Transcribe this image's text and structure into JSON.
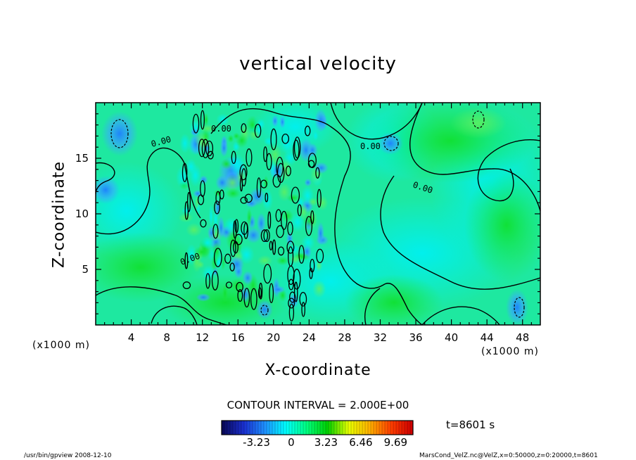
{
  "chart_data": {
    "type": "heatmap",
    "title": "vertical velocity",
    "xlabel": "X-coordinate",
    "ylabel": "Z-coordinate",
    "x_unit": "(x1000 m)",
    "xlim": [
      0,
      50
    ],
    "ylim": [
      0,
      20
    ],
    "x_ticks": [
      4,
      8,
      12,
      16,
      20,
      24,
      28,
      32,
      36,
      40,
      44,
      48
    ],
    "y_ticks": [
      5,
      10,
      15
    ],
    "contour_interval_label": "CONTOUR INTERVAL = 2.000E+00",
    "contour_labels": [
      "0.00",
      "0.00",
      "0.00",
      "0.00",
      "0.00"
    ],
    "colorbar": {
      "ticks": [
        -3.23,
        0,
        3.23,
        6.46,
        9.69
      ],
      "tick_labels": [
        "-3.23",
        "0",
        "3.23",
        "6.46",
        "9.69"
      ],
      "range": [
        -6.46,
        11.3
      ],
      "colors": [
        "#0a0a5c",
        "#1a2fd0",
        "#1e90ff",
        "#00ffff",
        "#00ff7f",
        "#00d000",
        "#e8ff00",
        "#ffb000",
        "#ff4000",
        "#d00000"
      ]
    },
    "grid": false
  },
  "time_label": "t=8601 s",
  "footer": {
    "left": "/usr/bin/gpview   2008-12-10",
    "right": "MarsCond_VelZ.nc@VelZ,x=0:50000,z=0:20000,t=8601"
  }
}
